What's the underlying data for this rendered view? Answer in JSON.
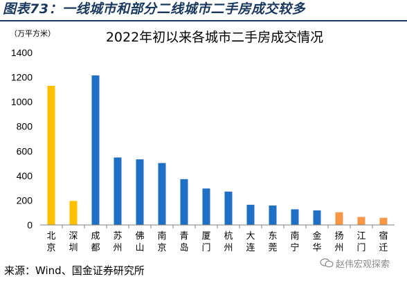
{
  "header": {
    "figure_caption": "图表73：一线城市和部分二线城市二手房成交较多"
  },
  "chart_data": {
    "type": "bar",
    "title": "2022年初以来各城市二手房成交情况",
    "unit_label": "（万平方米）",
    "ylim": [
      0,
      1400
    ],
    "yticks": [
      0,
      200,
      400,
      600,
      800,
      1000,
      1200,
      1400
    ],
    "categories": [
      "北京",
      "深圳",
      "成都",
      "苏州",
      "佛山",
      "南京",
      "青岛",
      "厦门",
      "杭州",
      "大连",
      "东莞",
      "南宁",
      "金华",
      "扬州",
      "江门",
      "宿迁"
    ],
    "values": [
      1130,
      195,
      1215,
      548,
      533,
      503,
      372,
      296,
      271,
      164,
      158,
      127,
      118,
      103,
      65,
      58
    ],
    "colors": [
      "#ffc000",
      "#ffc000",
      "#1f6fc4",
      "#1f6fc4",
      "#1f6fc4",
      "#1f6fc4",
      "#1f6fc4",
      "#1f6fc4",
      "#1f6fc4",
      "#1f6fc4",
      "#1f6fc4",
      "#1f6fc4",
      "#1f6fc4",
      "#f79646",
      "#f79646",
      "#f79646"
    ],
    "grid": false
  },
  "footer": {
    "source": "来源：Wind、国金证券研究所",
    "watermark": "赵伟宏观探索"
  }
}
